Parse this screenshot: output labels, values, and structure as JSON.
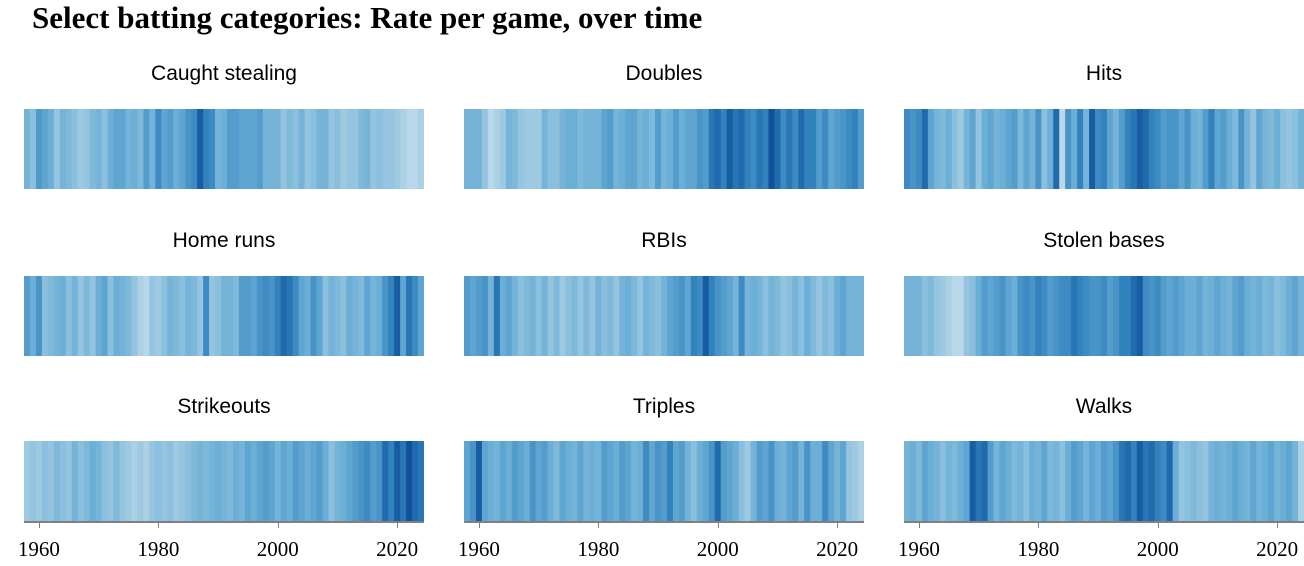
{
  "title": "Select batting categories: Rate per game, over time",
  "chart_data": {
    "type": "heatmap",
    "x_range": [
      1958,
      2024
    ],
    "x_ticks": [
      1960,
      1980,
      2000,
      2020
    ],
    "panels": [
      {
        "title": "Caught stealing",
        "start_year": 1958,
        "values": [
          0.45,
          0.35,
          0.62,
          0.55,
          0.5,
          0.3,
          0.45,
          0.4,
          0.35,
          0.25,
          0.3,
          0.4,
          0.45,
          0.35,
          0.5,
          0.55,
          0.55,
          0.45,
          0.5,
          0.4,
          0.6,
          0.45,
          0.7,
          0.55,
          0.6,
          0.5,
          0.55,
          0.65,
          0.7,
          0.9,
          0.75,
          0.7,
          0.45,
          0.5,
          0.6,
          0.6,
          0.55,
          0.55,
          0.55,
          0.6,
          0.45,
          0.45,
          0.45,
          0.3,
          0.4,
          0.35,
          0.45,
          0.3,
          0.35,
          0.45,
          0.45,
          0.3,
          0.35,
          0.25,
          0.3,
          0.3,
          0.4,
          0.45,
          0.3,
          0.35,
          0.3,
          0.3,
          0.25,
          0.2,
          0.15,
          0.15,
          0.2
        ]
      },
      {
        "title": "Doubles",
        "start_year": 1958,
        "values": [
          0.45,
          0.45,
          0.45,
          0.3,
          0.15,
          0.2,
          0.25,
          0.45,
          0.4,
          0.3,
          0.25,
          0.25,
          0.25,
          0.45,
          0.35,
          0.35,
          0.45,
          0.5,
          0.5,
          0.4,
          0.45,
          0.45,
          0.45,
          0.55,
          0.6,
          0.45,
          0.5,
          0.55,
          0.55,
          0.45,
          0.5,
          0.4,
          0.6,
          0.45,
          0.5,
          0.6,
          0.5,
          0.55,
          0.55,
          0.65,
          0.6,
          0.8,
          0.85,
          0.75,
          0.9,
          0.8,
          0.85,
          0.75,
          0.7,
          0.8,
          0.75,
          0.95,
          0.85,
          0.7,
          0.8,
          0.7,
          0.85,
          0.75,
          0.75,
          0.6,
          0.7,
          0.55,
          0.6,
          0.65,
          0.7,
          0.75,
          0.6
        ]
      },
      {
        "title": "Hits",
        "start_year": 1958,
        "values": [
          0.7,
          0.65,
          0.7,
          0.85,
          0.55,
          0.45,
          0.4,
          0.5,
          0.35,
          0.25,
          0.45,
          0.55,
          0.3,
          0.5,
          0.55,
          0.45,
          0.5,
          0.55,
          0.6,
          0.4,
          0.55,
          0.45,
          0.65,
          0.35,
          0.5,
          0.85,
          0.15,
          0.65,
          0.5,
          0.75,
          0.45,
          0.9,
          0.7,
          0.75,
          0.55,
          0.45,
          0.6,
          0.75,
          0.8,
          0.9,
          0.85,
          0.75,
          0.7,
          0.6,
          0.65,
          0.65,
          0.55,
          0.65,
          0.5,
          0.45,
          0.6,
          0.75,
          0.55,
          0.6,
          0.5,
          0.4,
          0.65,
          0.45,
          0.3,
          0.55,
          0.45,
          0.4,
          0.5,
          0.35,
          0.3,
          0.35,
          0.45
        ]
      },
      {
        "title": "Home runs",
        "start_year": 1958,
        "values": [
          0.6,
          0.5,
          0.65,
          0.35,
          0.4,
          0.45,
          0.5,
          0.35,
          0.45,
          0.3,
          0.4,
          0.3,
          0.5,
          0.55,
          0.35,
          0.5,
          0.45,
          0.4,
          0.3,
          0.2,
          0.15,
          0.3,
          0.25,
          0.35,
          0.45,
          0.4,
          0.35,
          0.45,
          0.4,
          0.3,
          0.7,
          0.3,
          0.35,
          0.45,
          0.45,
          0.4,
          0.6,
          0.6,
          0.55,
          0.65,
          0.7,
          0.65,
          0.75,
          0.85,
          0.8,
          0.7,
          0.55,
          0.5,
          0.65,
          0.55,
          0.35,
          0.45,
          0.4,
          0.35,
          0.5,
          0.45,
          0.4,
          0.55,
          0.45,
          0.5,
          0.65,
          0.75,
          0.9,
          0.55,
          0.8,
          0.7,
          0.55
        ]
      },
      {
        "title": "RBIs",
        "start_year": 1958,
        "values": [
          0.6,
          0.55,
          0.6,
          0.65,
          0.45,
          0.8,
          0.5,
          0.55,
          0.45,
          0.35,
          0.4,
          0.45,
          0.35,
          0.45,
          0.3,
          0.4,
          0.25,
          0.35,
          0.4,
          0.3,
          0.4,
          0.3,
          0.45,
          0.35,
          0.4,
          0.3,
          0.45,
          0.5,
          0.4,
          0.3,
          0.45,
          0.4,
          0.35,
          0.45,
          0.55,
          0.6,
          0.65,
          0.55,
          0.75,
          0.7,
          0.9,
          0.75,
          0.65,
          0.6,
          0.55,
          0.45,
          0.7,
          0.45,
          0.5,
          0.45,
          0.35,
          0.45,
          0.4,
          0.3,
          0.35,
          0.45,
          0.35,
          0.5,
          0.4,
          0.3,
          0.4,
          0.35,
          0.5,
          0.55,
          0.45,
          0.45,
          0.45
        ]
      },
      {
        "title": "Stolen bases",
        "start_year": 1958,
        "values": [
          0.45,
          0.45,
          0.45,
          0.35,
          0.4,
          0.3,
          0.25,
          0.2,
          0.15,
          0.15,
          0.3,
          0.35,
          0.5,
          0.6,
          0.55,
          0.6,
          0.65,
          0.55,
          0.5,
          0.65,
          0.7,
          0.65,
          0.75,
          0.7,
          0.6,
          0.65,
          0.7,
          0.7,
          0.8,
          0.75,
          0.7,
          0.65,
          0.65,
          0.7,
          0.6,
          0.65,
          0.75,
          0.75,
          0.85,
          0.9,
          0.7,
          0.65,
          0.7,
          0.6,
          0.55,
          0.6,
          0.55,
          0.5,
          0.5,
          0.55,
          0.45,
          0.5,
          0.55,
          0.5,
          0.45,
          0.55,
          0.6,
          0.5,
          0.45,
          0.5,
          0.4,
          0.45,
          0.35,
          0.4,
          0.5,
          0.55,
          0.45
        ]
      },
      {
        "title": "Strikeouts",
        "start_year": 1958,
        "values": [
          0.25,
          0.3,
          0.25,
          0.35,
          0.3,
          0.4,
          0.35,
          0.3,
          0.45,
          0.35,
          0.4,
          0.5,
          0.45,
          0.35,
          0.3,
          0.4,
          0.3,
          0.25,
          0.2,
          0.25,
          0.2,
          0.3,
          0.35,
          0.3,
          0.35,
          0.25,
          0.3,
          0.35,
          0.4,
          0.45,
          0.4,
          0.45,
          0.5,
          0.45,
          0.4,
          0.5,
          0.45,
          0.55,
          0.5,
          0.55,
          0.6,
          0.55,
          0.45,
          0.55,
          0.5,
          0.6,
          0.55,
          0.5,
          0.55,
          0.6,
          0.5,
          0.35,
          0.45,
          0.5,
          0.55,
          0.6,
          0.65,
          0.7,
          0.6,
          0.65,
          0.85,
          0.75,
          0.9,
          0.8,
          0.95,
          0.85,
          0.8
        ]
      },
      {
        "title": "Triples",
        "start_year": 1958,
        "values": [
          0.55,
          0.65,
          0.9,
          0.55,
          0.5,
          0.45,
          0.55,
          0.5,
          0.6,
          0.55,
          0.5,
          0.65,
          0.55,
          0.6,
          0.5,
          0.4,
          0.55,
          0.5,
          0.45,
          0.55,
          0.45,
          0.5,
          0.45,
          0.6,
          0.55,
          0.5,
          0.6,
          0.55,
          0.45,
          0.5,
          0.7,
          0.55,
          0.65,
          0.6,
          0.75,
          0.55,
          0.6,
          0.45,
          0.35,
          0.5,
          0.55,
          0.65,
          0.85,
          0.6,
          0.55,
          0.5,
          0.35,
          0.25,
          0.45,
          0.6,
          0.55,
          0.65,
          0.5,
          0.45,
          0.55,
          0.6,
          0.45,
          0.65,
          0.5,
          0.5,
          0.7,
          0.55,
          0.45,
          0.55,
          0.3,
          0.25,
          0.2
        ]
      },
      {
        "title": "Walks",
        "start_year": 1958,
        "values": [
          0.45,
          0.5,
          0.4,
          0.55,
          0.5,
          0.45,
          0.35,
          0.45,
          0.4,
          0.5,
          0.55,
          0.9,
          0.8,
          0.85,
          0.6,
          0.45,
          0.55,
          0.5,
          0.4,
          0.45,
          0.35,
          0.5,
          0.45,
          0.55,
          0.4,
          0.45,
          0.35,
          0.5,
          0.6,
          0.55,
          0.45,
          0.55,
          0.5,
          0.6,
          0.55,
          0.65,
          0.8,
          0.85,
          0.75,
          0.9,
          0.8,
          0.85,
          0.75,
          0.7,
          0.85,
          0.5,
          0.3,
          0.35,
          0.4,
          0.35,
          0.3,
          0.45,
          0.5,
          0.45,
          0.5,
          0.55,
          0.5,
          0.45,
          0.55,
          0.45,
          0.5,
          0.55,
          0.45,
          0.5,
          0.55,
          0.45,
          0.2
        ]
      }
    ]
  }
}
